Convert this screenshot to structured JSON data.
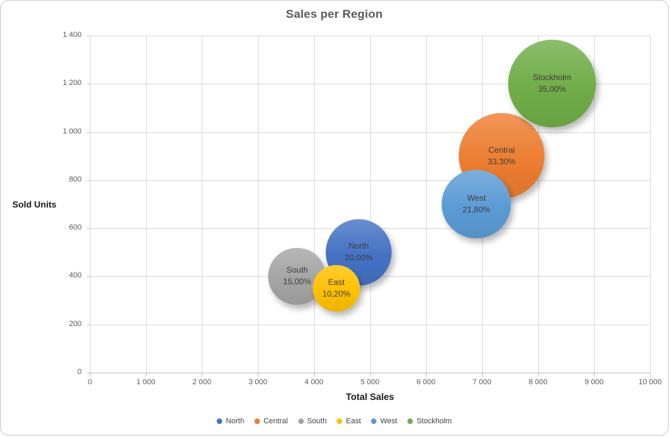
{
  "colors": {
    "border": "#c9c9c9",
    "title": "#595959",
    "tick": "#595959",
    "axis_title": "#1a1a1a",
    "gridline": "#d9d9d9",
    "axis_line": "#bfbfbf",
    "bubble_text": "#3d3d3d",
    "legend_text": "#404040"
  },
  "chart_data": {
    "type": "scatter",
    "variant": "bubble",
    "title": "Sales per Region",
    "xlabel": "Total Sales",
    "ylabel": "Sold Units",
    "xlim": [
      0,
      10000
    ],
    "ylim": [
      0,
      1400
    ],
    "grid": true,
    "legend_position": "bottom",
    "x_tick_values": [
      0,
      1000,
      2000,
      3000,
      4000,
      5000,
      6000,
      7000,
      8000,
      9000,
      10000
    ],
    "x_tick_labels": [
      "0",
      "1 000",
      "2 000",
      "3 000",
      "4 000",
      "5 000",
      "6 000",
      "7 000",
      "8 000",
      "9 000",
      "10 000"
    ],
    "y_tick_values": [
      0,
      200,
      400,
      600,
      800,
      1000,
      1200,
      1400
    ],
    "y_tick_labels": [
      "0",
      "200",
      "400",
      "600",
      "800",
      "1 000",
      "1 200",
      "1 400"
    ],
    "series": [
      {
        "name": "North",
        "x": 4800,
        "y": 500,
        "size_pct": 20.0,
        "size_label": "20,00%",
        "color": "#4472C4"
      },
      {
        "name": "Central",
        "x": 7350,
        "y": 900,
        "size_pct": 33.3,
        "size_label": "33,30%",
        "color": "#ED7D31"
      },
      {
        "name": "South",
        "x": 3700,
        "y": 400,
        "size_pct": 15.0,
        "size_label": "15,00%",
        "color": "#A5A5A5"
      },
      {
        "name": "East",
        "x": 4400,
        "y": 350,
        "size_pct": 10.2,
        "size_label": "10,20%",
        "color": "#FFC000"
      },
      {
        "name": "West",
        "x": 6900,
        "y": 700,
        "size_pct": 21.8,
        "size_label": "21,80%",
        "color": "#5B9BD5"
      },
      {
        "name": "Stockholm",
        "x": 8250,
        "y": 1200,
        "size_pct": 35.0,
        "size_label": "35,00%",
        "color": "#70AD47"
      }
    ]
  }
}
